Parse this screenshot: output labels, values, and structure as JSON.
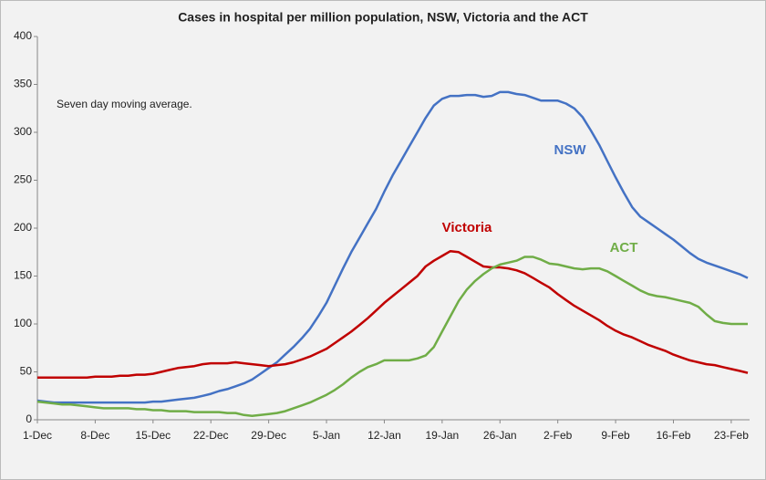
{
  "chart_data": {
    "type": "line",
    "title": "Cases in hospital per million population, NSW, Victoria and the ACT",
    "annotation": "Seven day moving average.",
    "categories": [
      "1-Dec",
      null,
      null,
      null,
      null,
      null,
      null,
      "8-Dec",
      null,
      null,
      null,
      null,
      null,
      null,
      "15-Dec",
      null,
      null,
      null,
      null,
      null,
      null,
      "22-Dec",
      null,
      null,
      null,
      null,
      null,
      null,
      "29-Dec",
      null,
      null,
      null,
      null,
      null,
      null,
      "5-Jan",
      null,
      null,
      null,
      null,
      null,
      null,
      "12-Jan",
      null,
      null,
      null,
      null,
      null,
      null,
      "19-Jan",
      null,
      null,
      null,
      null,
      null,
      null,
      "26-Jan",
      null,
      null,
      null,
      null,
      null,
      null,
      "2-Feb",
      null,
      null,
      null,
      null,
      null,
      null,
      "9-Feb",
      null,
      null,
      null,
      null,
      null,
      null,
      "16-Feb",
      null,
      null,
      null,
      null,
      null,
      null,
      "23-Feb",
      null,
      null
    ],
    "series": [
      {
        "name": "NSW",
        "color": "#4472c4",
        "values": [
          20,
          19,
          18,
          18,
          18,
          18,
          18,
          18,
          18,
          18,
          18,
          18,
          18,
          18,
          19,
          19,
          20,
          21,
          22,
          23,
          25,
          27,
          30,
          32,
          35,
          38,
          42,
          48,
          54,
          60,
          68,
          76,
          85,
          95,
          108,
          122,
          140,
          158,
          175,
          190,
          205,
          220,
          238,
          255,
          270,
          285,
          300,
          315,
          328,
          335,
          338,
          338,
          339,
          339,
          337,
          338,
          342,
          342,
          340,
          339,
          336,
          333,
          333,
          333,
          330,
          325,
          316,
          302,
          287,
          270,
          253,
          237,
          222,
          212,
          206,
          200,
          194,
          188,
          181,
          174,
          168,
          164,
          161,
          158,
          155,
          152,
          148
        ]
      },
      {
        "name": "Victoria",
        "color": "#c00000",
        "values": [
          44,
          44,
          44,
          44,
          44,
          44,
          44,
          45,
          45,
          45,
          46,
          46,
          47,
          47,
          48,
          50,
          52,
          54,
          55,
          56,
          58,
          59,
          59,
          59,
          60,
          59,
          58,
          57,
          56,
          57,
          58,
          60,
          63,
          66,
          70,
          74,
          80,
          86,
          92,
          99,
          106,
          114,
          122,
          129,
          136,
          143,
          150,
          160,
          166,
          171,
          176,
          175,
          170,
          165,
          160,
          159,
          159,
          158,
          156,
          153,
          148,
          143,
          138,
          131,
          125,
          119,
          114,
          109,
          104,
          98,
          93,
          89,
          86,
          82,
          78,
          75,
          72,
          68,
          65,
          62,
          60,
          58,
          57,
          55,
          53,
          51,
          49
        ]
      },
      {
        "name": "ACT",
        "color": "#70ad47",
        "values": [
          19,
          18,
          17,
          16,
          16,
          15,
          14,
          13,
          12,
          12,
          12,
          12,
          11,
          11,
          10,
          10,
          9,
          9,
          9,
          8,
          8,
          8,
          8,
          7,
          7,
          5,
          4,
          5,
          6,
          7,
          9,
          12,
          15,
          18,
          22,
          26,
          31,
          37,
          44,
          50,
          55,
          58,
          62,
          62,
          62,
          62,
          64,
          67,
          76,
          92,
          108,
          124,
          136,
          145,
          152,
          158,
          162,
          164,
          166,
          170,
          170,
          167,
          163,
          162,
          160,
          158,
          157,
          158,
          158,
          155,
          150,
          145,
          140,
          135,
          131,
          129,
          128,
          126,
          124,
          122,
          118,
          110,
          103,
          101,
          100,
          100,
          100
        ]
      }
    ],
    "ylim": [
      0,
      400
    ],
    "yticks": [
      0,
      50,
      100,
      150,
      200,
      250,
      300,
      350,
      400
    ],
    "grid": false
  }
}
